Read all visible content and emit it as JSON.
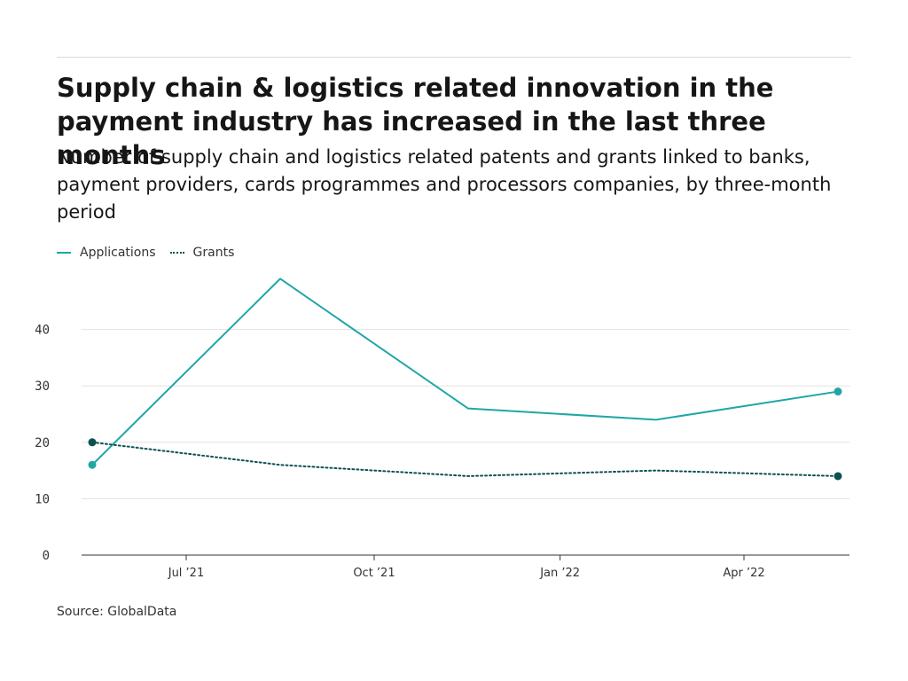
{
  "title": "Supply chain & logistics related innovation in the payment industry has increased in the last three months",
  "subtitle": "Number of supply chain and logistics related patents and grants linked to banks, payment providers, cards programmes and processors companies, by three-month period",
  "source": "Source: GlobalData",
  "colors": {
    "applications": "#21a6a6",
    "grants": "#0b5154",
    "grid": "#e3e3e3",
    "axis": "#333333"
  },
  "chart_data": {
    "type": "line",
    "x": [
      "2021-05",
      "2021-08",
      "2021-11",
      "2022-02",
      "2022-05"
    ],
    "x_tick_labels": [
      "Jul ’21",
      "Oct ’21",
      "Jan ’22",
      "Apr ’22"
    ],
    "series": [
      {
        "name": "Applications",
        "values": [
          16,
          49,
          26,
          24,
          29
        ],
        "style": "solid"
      },
      {
        "name": "Grants",
        "values": [
          20,
          16,
          14,
          15,
          14
        ],
        "style": "dotted"
      }
    ],
    "y_ticks": [
      0,
      10,
      20,
      30,
      40
    ],
    "ylim": [
      0,
      50
    ],
    "grid": true,
    "legend": "top-left"
  }
}
